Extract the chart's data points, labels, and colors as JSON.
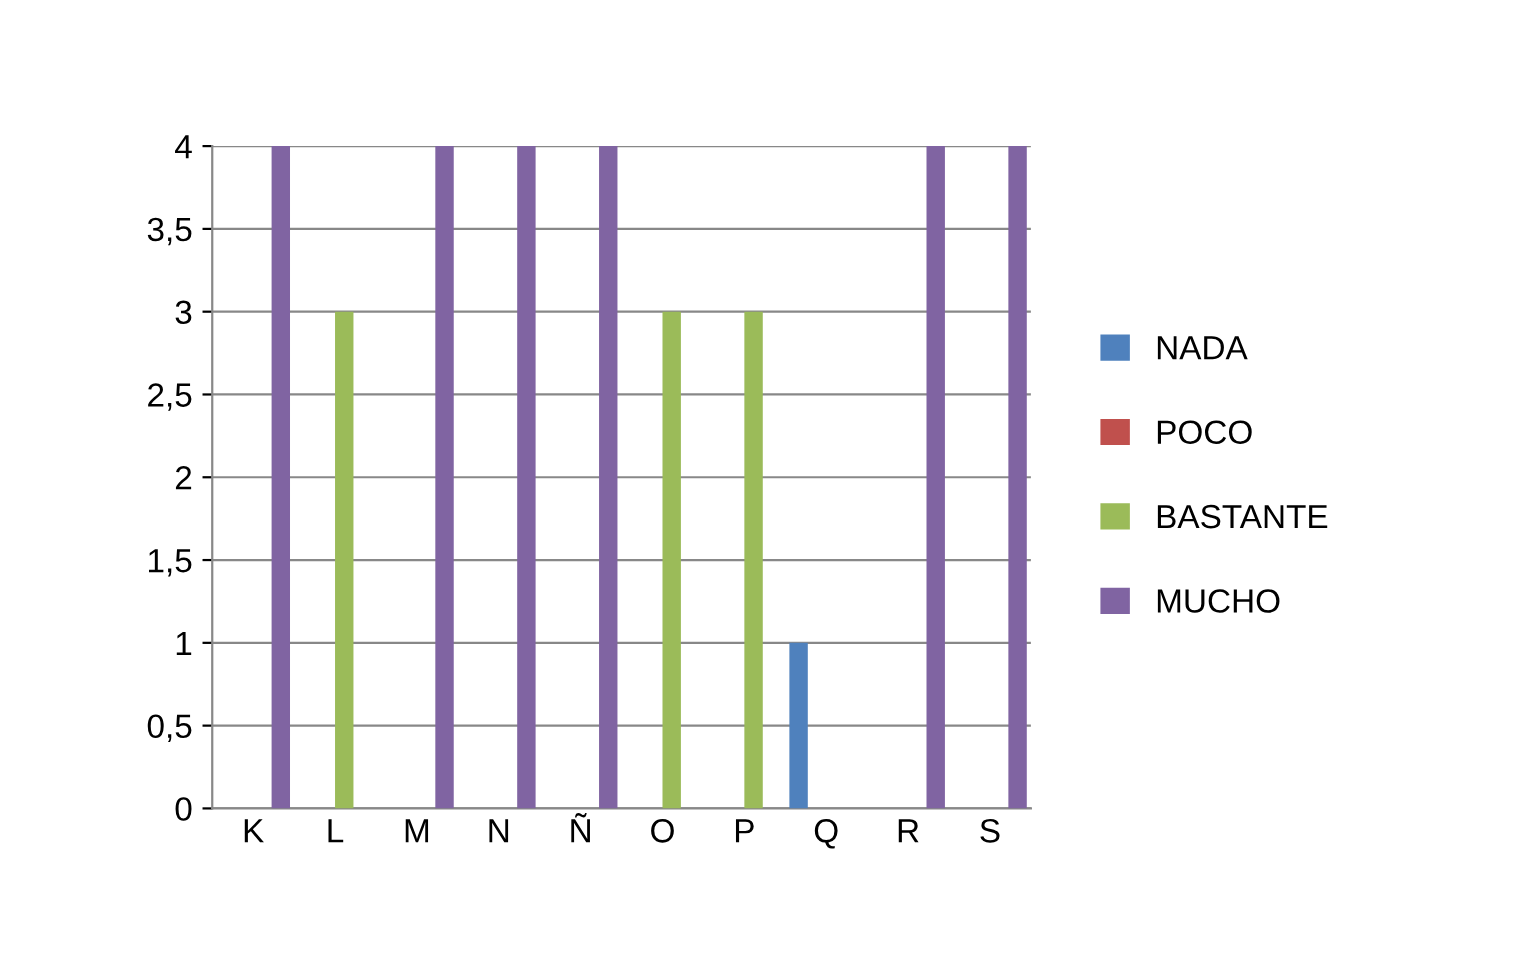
{
  "chart_data": {
    "type": "bar",
    "categories": [
      "K",
      "L",
      "M",
      "N",
      "Ñ",
      "O",
      "P",
      "Q",
      "R",
      "S"
    ],
    "series": [
      {
        "name": "NADA",
        "color": "#4f81bd",
        "values": [
          null,
          null,
          null,
          null,
          null,
          null,
          null,
          1,
          null,
          null
        ]
      },
      {
        "name": "POCO",
        "color": "#c0504d",
        "values": [
          null,
          null,
          null,
          null,
          null,
          null,
          null,
          null,
          null,
          null
        ]
      },
      {
        "name": "BASTANTE",
        "color": "#9bbb59",
        "values": [
          null,
          3,
          null,
          null,
          null,
          3,
          3,
          null,
          null,
          null
        ]
      },
      {
        "name": "MUCHO",
        "color": "#8064a2",
        "values": [
          4,
          null,
          4,
          4,
          4,
          null,
          null,
          null,
          4,
          4
        ]
      }
    ],
    "ylim": [
      0,
      4
    ],
    "yticks": [
      0,
      {
        "value": 0.5,
        "label": "0,5"
      },
      1,
      {
        "value": 1.5,
        "label": "1,5"
      },
      2,
      {
        "value": 2.5,
        "label": "2,5"
      },
      3,
      {
        "value": 3.5,
        "label": "3,5"
      },
      4
    ],
    "grid": "y",
    "legend": "right"
  }
}
